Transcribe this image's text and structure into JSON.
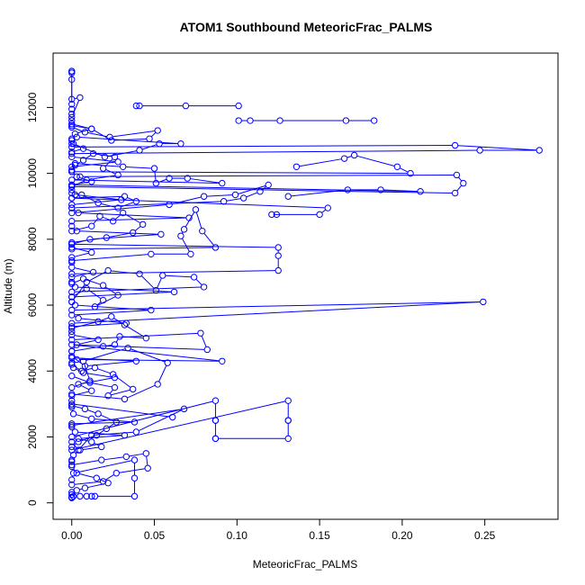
{
  "chart_data": {
    "type": "line",
    "title": "ATOM1 Southbound MeteoricFrac_PALMS",
    "xlabel": "MeteoricFrac_PALMS",
    "ylabel": "Altitude (m)",
    "xlim": [
      -0.0113,
      0.2943
    ],
    "ylim": [
      -500,
      13650
    ],
    "x_ticks": [
      0.0,
      0.05,
      0.1,
      0.15,
      0.2,
      0.25
    ],
    "x_tick_labels": [
      "0.00",
      "0.05",
      "0.10",
      "0.15",
      "0.20",
      "0.25"
    ],
    "y_ticks": [
      0,
      2000,
      4000,
      6000,
      8000,
      10000,
      12000
    ],
    "y_tick_labels": [
      "0",
      "2000",
      "4000",
      "6000",
      "8000",
      "10000",
      "12000"
    ],
    "grid": false,
    "legend": "none",
    "marker": "open-circle",
    "color": "#0000ff",
    "series": [
      {
        "x": [
          0.0,
          0.0,
          0.001,
          0.0,
          0.0,
          0.003,
          0.008,
          0.022,
          0.015,
          0.003,
          0.0,
          0.0
        ],
        "y": [
          150,
          170,
          200,
          250,
          320,
          380,
          450,
          600,
          750,
          900,
          1100,
          1250
        ]
      },
      {
        "x": [
          0.0,
          0.001,
          0.005,
          0.018,
          0.012,
          0.004,
          0.032,
          0.002,
          0.0,
          0.0,
          0.038,
          0.012,
          0.001,
          0.0,
          0.0,
          0.061
        ],
        "y": [
          1300,
          1450,
          1600,
          1700,
          1850,
          1950,
          2050,
          2150,
          2300,
          2400,
          2450,
          2550,
          2700,
          2900,
          3000,
          2600
        ]
      },
      {
        "x": [
          0.0,
          0.0,
          0.012,
          0.004,
          0.026,
          0.007,
          0.001,
          0.0,
          0.0,
          0.039,
          0.008,
          0.0,
          0.0,
          0.003,
          0.016,
          0.0
        ],
        "y": [
          3100,
          3250,
          3400,
          3600,
          3800,
          3950,
          4100,
          4250,
          4400,
          4300,
          4150,
          4450,
          4600,
          4800,
          4950,
          5100
        ]
      },
      {
        "x": [
          0.0,
          0.0,
          0.033,
          0.004,
          0.0,
          0.048,
          0.002,
          0.0,
          0.0,
          0.062,
          0.002,
          0.0,
          0.0,
          0.013,
          0.0,
          0.0
        ],
        "y": [
          5200,
          5350,
          5450,
          5600,
          5700,
          5850,
          6000,
          6100,
          6250,
          6400,
          6550,
          6700,
          6850,
          7000,
          7150,
          7300
        ]
      },
      {
        "x": [
          0.0,
          0.012,
          0.0,
          0.0,
          0.011,
          0.054,
          0.003,
          0.0,
          0.0,
          0.071,
          0.004,
          0.0,
          0.0,
          0.03,
          0.002,
          0.0
        ],
        "y": [
          7450,
          7600,
          7750,
          7850,
          8000,
          8150,
          8250,
          8400,
          8550,
          8650,
          8800,
          8950,
          9050,
          9200,
          9350,
          9500
        ]
      },
      {
        "x": [
          0.0,
          0.012,
          0.003,
          0.0,
          0.0,
          0.028,
          0.0,
          0.0,
          0.007,
          0.0,
          0.0,
          0.002,
          0.012,
          0.0,
          0.0,
          0.0
        ],
        "y": [
          9650,
          9750,
          9900,
          10050,
          10200,
          10350,
          10500,
          10650,
          10750,
          10900,
          11050,
          11200,
          11350,
          11450,
          11600,
          11800
        ]
      },
      {
        "x": [
          0.0,
          0.0,
          0.0,
          0.0,
          0.0,
          0.0,
          0.0,
          0.005,
          0.0
        ],
        "y": [
          11950,
          12100,
          12850,
          13050,
          13100,
          13100,
          12250,
          12300,
          11700
        ]
      },
      {
        "x": [
          0.101,
          0.069,
          0.041,
          0.039
        ],
        "y": [
          12050,
          12050,
          12050,
          12050
        ]
      },
      {
        "x": [
          0.101,
          0.108,
          0.126,
          0.166,
          0.183
        ],
        "y": [
          11600,
          11600,
          11600,
          11600,
          11600
        ]
      },
      {
        "x": [
          0.0,
          0.232,
          0.283,
          0.247,
          0.0
        ],
        "y": [
          10800,
          10850,
          10700,
          10700,
          10600
        ]
      },
      {
        "x": [
          0.005,
          0.233,
          0.237,
          0.232,
          0.0
        ],
        "y": [
          9900,
          9950,
          9700,
          9400,
          9600
        ]
      },
      {
        "x": [
          0.0,
          0.205,
          0.197,
          0.171,
          0.165,
          0.136
        ],
        "y": [
          10050,
          10000,
          10200,
          10550,
          10450,
          10200
        ]
      },
      {
        "x": [
          0.0,
          0.211,
          0.187,
          0.167,
          0.131
        ],
        "y": [
          9650,
          9450,
          9500,
          9500,
          9300
        ]
      },
      {
        "x": [
          0.0,
          0.155,
          0.15,
          0.121,
          0.124
        ],
        "y": [
          9250,
          8950,
          8750,
          8750,
          8750
        ]
      },
      {
        "x": [
          0.0,
          0.249,
          0.0
        ],
        "y": [
          5850,
          6100,
          5450
        ]
      },
      {
        "x": [
          0.0,
          0.125,
          0.125,
          0.125,
          0.0
        ],
        "y": [
          7850,
          7750,
          7500,
          7050,
          6950
        ]
      },
      {
        "x": [
          0.0,
          0.131,
          0.131,
          0.131,
          0.131,
          0.087
        ],
        "y": [
          1600,
          3100,
          2500,
          2500,
          1950,
          1950
        ]
      },
      {
        "x": [
          0.0,
          0.087,
          0.087,
          0.087,
          0.087
        ],
        "y": [
          2000,
          3100,
          2500,
          2500,
          1950
        ]
      },
      {
        "x": [
          0.003,
          0.091,
          0.0,
          0.082,
          0.078,
          0.0
        ],
        "y": [
          4350,
          4300,
          4800,
          4650,
          5150,
          4950
        ]
      },
      {
        "x": [
          0.014,
          0.038,
          0.038,
          0.038,
          0.001,
          0.0
        ],
        "y": [
          200,
          200,
          750,
          1300,
          900,
          700
        ]
      },
      {
        "x": [
          0.0,
          0.068,
          0.039,
          0.012,
          0.004,
          0.0
        ],
        "y": [
          2350,
          2850,
          2150,
          2050,
          1600,
          1850
        ]
      },
      {
        "x": [
          0.0,
          0.032,
          0.052,
          0.058,
          0.034,
          0.007,
          0.011,
          0.0
        ],
        "y": [
          3300,
          3150,
          3600,
          4250,
          4700,
          4300,
          3700,
          3500
        ]
      },
      {
        "x": [
          0.0,
          0.08,
          0.074,
          0.055,
          0.051,
          0.041,
          0.022,
          0.009,
          0.0
        ],
        "y": [
          6400,
          6550,
          6850,
          6900,
          6450,
          6950,
          7050,
          6700,
          6100
        ]
      },
      {
        "x": [
          0.0,
          0.087,
          0.079,
          0.075,
          0.068,
          0.066,
          0.072,
          0.048,
          0.0
        ],
        "y": [
          7700,
          7750,
          8250,
          8900,
          8300,
          8100,
          7550,
          7550,
          7350
        ]
      },
      {
        "x": [
          0.0,
          0.092,
          0.104,
          0.114,
          0.119,
          0.099,
          0.08,
          0.059,
          0.0
        ],
        "y": [
          8950,
          9150,
          9250,
          9450,
          9650,
          9350,
          9300,
          9050,
          8800
        ]
      },
      {
        "x": [
          0.0,
          0.091,
          0.07,
          0.059,
          0.051,
          0.05,
          0.031,
          0.002,
          0.0
        ],
        "y": [
          9800,
          9700,
          9850,
          9850,
          9700,
          10150,
          10200,
          10300,
          10100
        ]
      },
      {
        "x": [
          0.003,
          0.066,
          0.053,
          0.041,
          0.02,
          0.001,
          0.0
        ],
        "y": [
          11100,
          10900,
          10900,
          10700,
          10500,
          10900,
          11000
        ]
      },
      {
        "x": [
          0.0,
          0.008,
          0.023,
          0.052,
          0.047,
          0.024,
          0.012,
          0.0
        ],
        "y": [
          11400,
          11250,
          11100,
          11300,
          11050,
          11000,
          11350,
          11500
        ]
      },
      {
        "x": [
          0.0,
          0.019,
          0.027,
          0.046,
          0.045,
          0.033,
          0.018,
          0.0
        ],
        "y": [
          550,
          650,
          900,
          1050,
          1500,
          1400,
          1300,
          1150
        ]
      },
      {
        "x": [
          0.0,
          0.016,
          0.024,
          0.032,
          0.045,
          0.029,
          0.026,
          0.019,
          0.0
        ],
        "y": [
          5300,
          5500,
          5650,
          5400,
          5000,
          5050,
          4800,
          4750,
          4600
        ]
      },
      {
        "x": [
          0.0,
          0.012,
          0.017,
          0.025,
          0.031,
          0.043,
          0.037,
          0.021,
          0.0
        ],
        "y": [
          8250,
          8400,
          8700,
          8550,
          8800,
          8450,
          8200,
          8050,
          7900
        ]
      },
      {
        "x": [
          0.0,
          0.011,
          0.026,
          0.022,
          0.037,
          0.025,
          0.014,
          0.006,
          0.0
        ],
        "y": [
          3850,
          3650,
          3500,
          3250,
          3450,
          3900,
          4100,
          4000,
          4200
        ]
      },
      {
        "x": [
          0.0,
          0.009,
          0.019,
          0.014,
          0.028,
          0.019,
          0.007,
          0.0
        ],
        "y": [
          6250,
          6500,
          6150,
          5950,
          6300,
          6600,
          6800,
          6650
        ]
      },
      {
        "x": [
          0.0,
          0.032,
          0.039,
          0.028,
          0.016,
          0.006,
          0.0
        ],
        "y": [
          9250,
          9300,
          9150,
          8950,
          9100,
          9350,
          9400
        ]
      },
      {
        "x": [
          0.0,
          0.004,
          0.015,
          0.021,
          0.027,
          0.016,
          0.008,
          0.0
        ],
        "y": [
          1700,
          1850,
          2050,
          2250,
          2450,
          2700,
          2850,
          2950
        ]
      },
      {
        "x": [
          0.0,
          0.002,
          0.007,
          0.013,
          0.026,
          0.019,
          0.028,
          0.009,
          0.0
        ],
        "y": [
          10050,
          10250,
          10400,
          10600,
          10500,
          10150,
          9950,
          9800,
          9600
        ]
      },
      {
        "x": [
          0.005,
          0.009,
          0.012
        ],
        "y": [
          200,
          200,
          200
        ]
      }
    ]
  }
}
